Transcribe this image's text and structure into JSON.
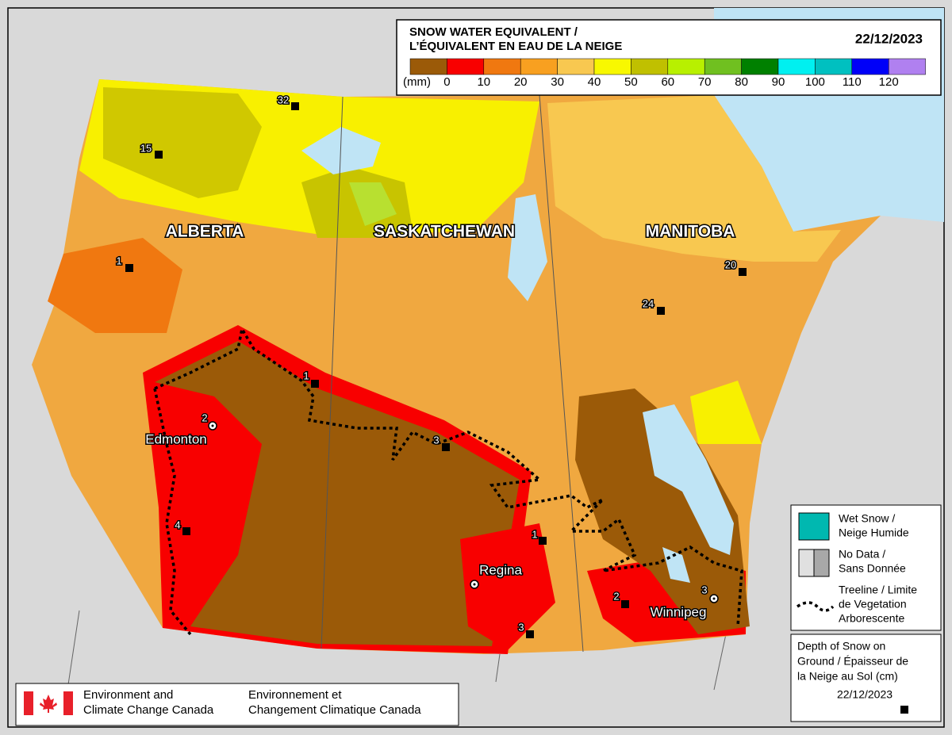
{
  "legend": {
    "title_lines": [
      "SNOW WATER EQUIVALENT  /",
      "L’ÉQUIVALENT EN EAU DE LA NEIGE"
    ],
    "date": "22/12/2023",
    "unit": "(mm)",
    "ticks": [
      0,
      10,
      20,
      30,
      40,
      50,
      60,
      70,
      80,
      90,
      100,
      110,
      120
    ],
    "colors": [
      "#9b5a08",
      "#f80000",
      "#f07810",
      "#f8a020",
      "#f8c850",
      "#f8f800",
      "#c0c000",
      "#b8f000",
      "#70c020",
      "#008000",
      "#00f0f0",
      "#00c0c0",
      "#0000f8",
      "#b080f0"
    ]
  },
  "provinces": [
    "ALBERTA",
    "SASKATCHEWAN",
    "MANITOBA"
  ],
  "cities": [
    "Edmonton",
    "Regina",
    "Winnipeg"
  ],
  "stations": [
    {
      "depth": 32
    },
    {
      "depth": 15
    },
    {
      "depth": 1
    },
    {
      "depth": 1
    },
    {
      "depth": 2
    },
    {
      "depth": 3
    },
    {
      "depth": 4
    },
    {
      "depth": 1
    },
    {
      "depth": 3
    },
    {
      "depth": 2
    },
    {
      "depth": 3
    },
    {
      "depth": 20
    },
    {
      "depth": 24
    }
  ],
  "key": {
    "wet_snow": [
      "Wet Snow /",
      "Neige Humide"
    ],
    "no_data": [
      "No Data /",
      "Sans Donnée"
    ],
    "treeline": [
      "Treeline / Limite",
      "de Vegetation",
      "Arborescente"
    ],
    "depth": [
      "Depth of Snow on",
      "Ground / Épaisseur de",
      "la Neige au Sol (cm)"
    ],
    "depth_date": "22/12/2023"
  },
  "footer": {
    "english": [
      "Environment and",
      "Climate Change Canada"
    ],
    "french": [
      "Environnement et",
      "Changement Climatique Canada"
    ]
  }
}
